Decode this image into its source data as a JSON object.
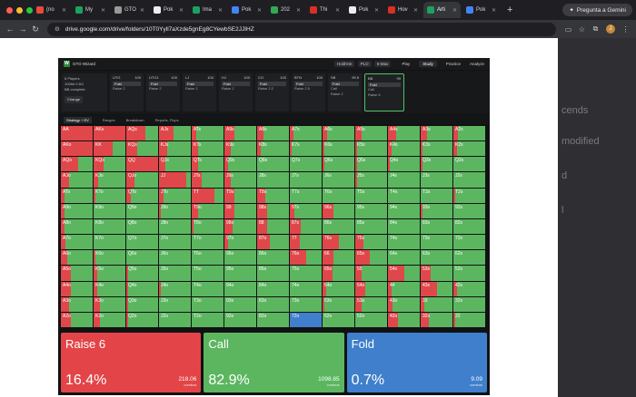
{
  "browser": {
    "tabs": [
      {
        "label": "(no",
        "color": "#e74c3c",
        "active": false
      },
      {
        "label": "My",
        "color": "#1aa260",
        "active": false
      },
      {
        "label": "GTO",
        "color": "#999999",
        "active": false
      },
      {
        "label": "Pok",
        "color": "#eeeeee",
        "active": false
      },
      {
        "label": "Ima",
        "color": "#1aa260",
        "active": false
      },
      {
        "label": "Pok",
        "color": "#4285f4",
        "active": false
      },
      {
        "label": "202",
        "color": "#34a853",
        "active": false
      },
      {
        "label": "Thi",
        "color": "#d93025",
        "active": false
      },
      {
        "label": "Pok",
        "color": "#eeeeee",
        "active": false
      },
      {
        "label": "Hov",
        "color": "#d93025",
        "active": false
      },
      {
        "label": "Arti",
        "color": "#1aa260",
        "active": true
      },
      {
        "label": "Pok",
        "color": "#4285f4",
        "active": false
      }
    ],
    "new_tab": "+",
    "gemini_label": "Pregunta a Gemini",
    "url": "drive.google.com/drive/folders/10T0Yyll7aXzde5gnEg8CYewbSE2JJIHZ",
    "profile_initial": "J"
  },
  "right_panel": {
    "snippets": [
      "cends",
      "modified",
      "d",
      "l"
    ]
  },
  "gto": {
    "app_name": "GTO Wizard",
    "header_pills": [
      "Hold'em",
      "PLO",
      "6-Max"
    ],
    "nav": [
      "Play",
      "Study",
      "Practice",
      "Analyze"
    ],
    "nav_active": "Study",
    "setup": {
      "players": "6 Players",
      "stack": "100bb 0.5/1",
      "mode": "BB complete",
      "change": "Change"
    },
    "positions": [
      {
        "pos": "UTG",
        "stack": "100",
        "action": "Fold",
        "sub": "Raise 2",
        "active": false
      },
      {
        "pos": "UTG1",
        "stack": "100",
        "action": "Fold",
        "sub": "Raise 2",
        "active": false
      },
      {
        "pos": "LJ",
        "stack": "100",
        "action": "Fold",
        "sub": "Raise 2",
        "active": false
      },
      {
        "pos": "HJ",
        "stack": "100",
        "action": "Fold",
        "sub": "Raise 2",
        "active": false
      },
      {
        "pos": "CO",
        "stack": "100",
        "action": "Fold",
        "sub": "Raise 2.2",
        "active": false
      },
      {
        "pos": "BTN",
        "stack": "100",
        "action": "Fold",
        "sub": "Raise 2.5",
        "active": false
      },
      {
        "pos": "SB",
        "stack": "99.5",
        "action": "Fold",
        "sub": "Call",
        "sub2": "Raise 2",
        "active": false
      },
      {
        "pos": "BB",
        "stack": "99",
        "action": "Fold",
        "sub": "Call",
        "sub2": "Raise 6",
        "active": true
      }
    ],
    "subbar": [
      "Strategy + EV",
      "Ranges",
      "Breakdown",
      "Reports, Flops"
    ],
    "summary": [
      {
        "name": "Raise 6",
        "pct": "16.4%",
        "combos": "218.06",
        "unit": "combos",
        "color": "#e24447"
      },
      {
        "name": "Call",
        "pct": "82.9%",
        "combos": "1098.85",
        "unit": "combos",
        "color": "#5cb660"
      },
      {
        "name": "Fold",
        "pct": "0.7%",
        "combos": "9.09",
        "unit": "combos",
        "color": "#3f7fcb"
      }
    ]
  },
  "hand_grid": {
    "ranks": [
      "A",
      "K",
      "Q",
      "J",
      "T",
      "9",
      "8",
      "7",
      "6",
      "5",
      "4",
      "3",
      "2"
    ],
    "raise_fraction": [
      [
        1.0,
        1.0,
        0.6,
        0.45,
        0.15,
        0.3,
        0.2,
        0.1,
        0.15,
        0.2,
        0.25,
        0.2,
        0.15
      ],
      [
        1.0,
        0.6,
        0.35,
        0.25,
        0.2,
        0.2,
        0.1,
        0.05,
        0.05,
        0.05,
        0.1,
        0.05,
        0.1
      ],
      [
        0.55,
        0.3,
        1.0,
        0.2,
        0.2,
        0.1,
        0.0,
        0.0,
        0.05,
        0.05,
        0.05,
        0.05,
        0.0
      ],
      [
        0.25,
        0.15,
        0.25,
        0.85,
        0.3,
        0.2,
        0.0,
        0.0,
        0.0,
        0.05,
        0.0,
        0.0,
        0.0
      ],
      [
        0.1,
        0.05,
        0.15,
        0.15,
        0.7,
        0.3,
        0.25,
        0.0,
        0.0,
        0.0,
        0.0,
        0.0,
        0.05
      ],
      [
        0.1,
        0.0,
        0.0,
        0.05,
        0.2,
        0.3,
        0.3,
        0.15,
        0.35,
        0.0,
        0.0,
        0.05,
        0.0
      ],
      [
        0.1,
        0.0,
        0.0,
        0.0,
        0.05,
        0.25,
        0.3,
        0.35,
        0.0,
        0.0,
        0.0,
        0.0,
        0.0
      ],
      [
        0.15,
        0.0,
        0.0,
        0.0,
        0.0,
        0.1,
        0.4,
        0.3,
        0.5,
        0.25,
        0.0,
        0.0,
        0.0
      ],
      [
        0.2,
        0.05,
        0.0,
        0.0,
        0.0,
        0.0,
        0.0,
        0.5,
        0.35,
        0.45,
        0.0,
        0.0,
        0.0
      ],
      [
        0.3,
        0.1,
        0.05,
        0.0,
        0.0,
        0.0,
        0.0,
        0.0,
        0.3,
        0.2,
        0.5,
        0.3,
        0.0
      ],
      [
        0.3,
        0.1,
        0.05,
        0.05,
        0.0,
        0.0,
        0.0,
        0.0,
        0.1,
        0.3,
        0.1,
        0.5,
        0.1
      ],
      [
        0.25,
        0.2,
        0.05,
        0.0,
        0.0,
        0.0,
        0.0,
        0.0,
        0.05,
        0.2,
        0.15,
        0.1,
        0.0
      ],
      [
        0.3,
        0.2,
        0.05,
        0.0,
        0.0,
        0.0,
        0.0,
        0.05,
        0.0,
        0.0,
        0.3,
        0.25,
        0.05
      ]
    ],
    "fold_fraction": [
      [
        0,
        0,
        0,
        0,
        0,
        0,
        0,
        0,
        0,
        0,
        0,
        0,
        0
      ],
      [
        0,
        0,
        0,
        0,
        0,
        0,
        0,
        0,
        0,
        0,
        0,
        0,
        0
      ],
      [
        0,
        0,
        0,
        0,
        0,
        0,
        0,
        0,
        0,
        0,
        0,
        0,
        0
      ],
      [
        0,
        0,
        0,
        0,
        0,
        0,
        0,
        0,
        0,
        0,
        0,
        0,
        0
      ],
      [
        0,
        0,
        0,
        0,
        0,
        0,
        0,
        0,
        0,
        0,
        0,
        0,
        0
      ],
      [
        0,
        0,
        0,
        0,
        0,
        0,
        0,
        0,
        0,
        0,
        0,
        0,
        0
      ],
      [
        0,
        0,
        0,
        0,
        0,
        0,
        0,
        0,
        0,
        0,
        0,
        0,
        0
      ],
      [
        0,
        0,
        0,
        0,
        0,
        0,
        0,
        0,
        0,
        0,
        0,
        0,
        0
      ],
      [
        0,
        0,
        0,
        0,
        0,
        0,
        0,
        0,
        0,
        0,
        0,
        0,
        0
      ],
      [
        0,
        0,
        0,
        0,
        0,
        0,
        0,
        0,
        0,
        0,
        0,
        0,
        0
      ],
      [
        0,
        0,
        0,
        0,
        0,
        0,
        0,
        0,
        0,
        0,
        0,
        0,
        0
      ],
      [
        0,
        0,
        0,
        0,
        0,
        0,
        0,
        0,
        0,
        0,
        0,
        0,
        0
      ],
      [
        0,
        0,
        0,
        0,
        0,
        0,
        0,
        1.0,
        0,
        0,
        0,
        0,
        0
      ]
    ]
  }
}
